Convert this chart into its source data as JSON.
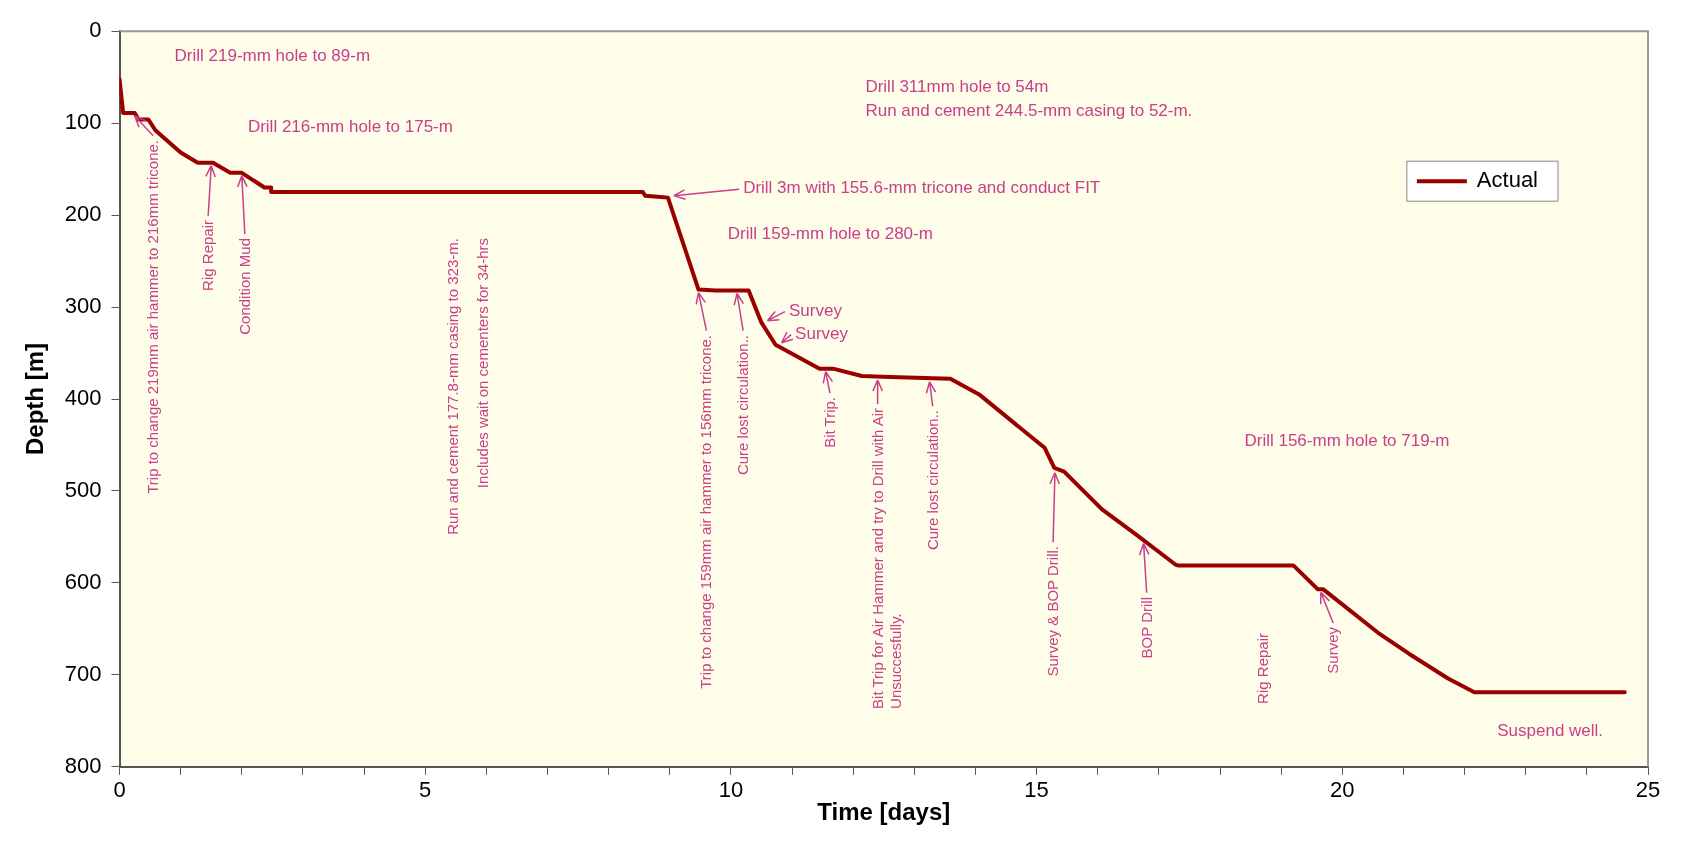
{
  "chart_data": {
    "type": "line",
    "xlabel": "Time [days]",
    "ylabel": "Depth [m]",
    "xlim": [
      0,
      25
    ],
    "xticks": [
      0,
      {
        "value": 1,
        "label": null
      },
      {
        "value": 2,
        "label": null
      },
      {
        "value": 3,
        "label": null
      },
      {
        "value": 4,
        "label": null
      },
      5,
      {
        "value": 6,
        "label": null
      },
      {
        "value": 7,
        "label": null
      },
      {
        "value": 8,
        "label": null
      },
      {
        "value": 9,
        "label": null
      },
      10,
      {
        "value": 11,
        "label": null
      },
      {
        "value": 12,
        "label": null
      },
      {
        "value": 13,
        "label": null
      },
      {
        "value": 14,
        "label": null
      },
      15,
      {
        "value": 16,
        "label": null
      },
      {
        "value": 17,
        "label": null
      },
      {
        "value": 18,
        "label": null
      },
      {
        "value": 19,
        "label": null
      },
      20,
      {
        "value": 21,
        "label": null
      },
      {
        "value": 22,
        "label": null
      },
      {
        "value": 23,
        "label": null
      },
      {
        "value": 24,
        "label": null
      },
      25
    ],
    "ylim": [
      800,
      0
    ],
    "yticks": [
      0,
      100,
      200,
      300,
      400,
      500,
      600,
      700,
      800
    ],
    "grid": false,
    "legend": "top right",
    "series": [
      {
        "name": "Actual",
        "color": "#990000",
        "x": [
          0,
          0.06,
          0.25,
          0.31,
          0.47,
          0.59,
          1.0,
          1.28,
          1.53,
          1.81,
          2.0,
          2.37,
          2.48,
          2.48,
          8.56,
          8.6,
          8.8,
          8.97,
          9.47,
          9.75,
          10.29,
          10.5,
          10.73,
          11.45,
          11.67,
          12.14,
          12.61,
          13.59,
          14.06,
          15.13,
          15.29,
          15.45,
          16.07,
          16.64,
          17.27,
          17.31,
          19.2,
          19.6,
          19.69,
          20.58,
          21.09,
          21.73,
          22.16,
          24.62
        ],
        "values": [
          52,
          89,
          89,
          96,
          96,
          108,
          132,
          143,
          143,
          154,
          154,
          170,
          170,
          175,
          175,
          179,
          180,
          181,
          281,
          282,
          282,
          317,
          341,
          367,
          367,
          375,
          376,
          378,
          395,
          453,
          475,
          479,
          520,
          548,
          580,
          581,
          581,
          607,
          607,
          654,
          677,
          704,
          719,
          719
        ]
      }
    ],
    "annotations": [
      "Drill 219-mm hole to 89-m",
      "Drill 216-mm hole to 175-m",
      "Drill 311mm hole to 54m",
      "Run and cement 244.5-mm casing to 52-m.",
      {
        "text": "Trip to change 219mm air hammer to 216mm tricone.",
        "x": 0.25,
        "y": 89
      },
      {
        "text": "Rig Repair",
        "x": 1.5,
        "y": 143
      },
      {
        "text": "Condition Mud",
        "x": 2.0,
        "y": 154
      },
      "Run and cement 177.8-mm casing to 323-m.",
      "Includes wait on cementers for 34-hrs",
      {
        "text": "Drill 3m with 155.6-mm tricone and conduct FIT",
        "x": 8.97,
        "y": 181
      },
      "Drill 159-mm hole to 280-m",
      {
        "text": "Trip to change 159mm air hammer to 156mm tricone.",
        "x": 9.47,
        "y": 281
      },
      {
        "text": "Cure lost circulation..",
        "x": 10.1,
        "y": 282
      },
      {
        "text": "Survey",
        "x": 10.5,
        "y": 317
      },
      {
        "text": "Survey",
        "x": 10.73,
        "y": 341
      },
      {
        "text": "Bit Trip.",
        "x": 11.55,
        "y": 367
      },
      {
        "text": "Bit Trip for Air Hammer and try to Drill with Air\nUnsuccesfully.",
        "x": 12.4,
        "y": 376
      },
      {
        "text": "Cure lost circulation..",
        "x": 13.25,
        "y": 378
      },
      "Drill 156-mm hole to 719-m",
      {
        "text": "Survey & BOP Drill.",
        "x": 15.3,
        "y": 477
      },
      {
        "text": "BOP Drill",
        "x": 16.75,
        "y": 554
      },
      "Rig Repair",
      {
        "text": "Survey",
        "x": 19.65,
        "y": 607
      },
      "Suspend well."
    ]
  }
}
